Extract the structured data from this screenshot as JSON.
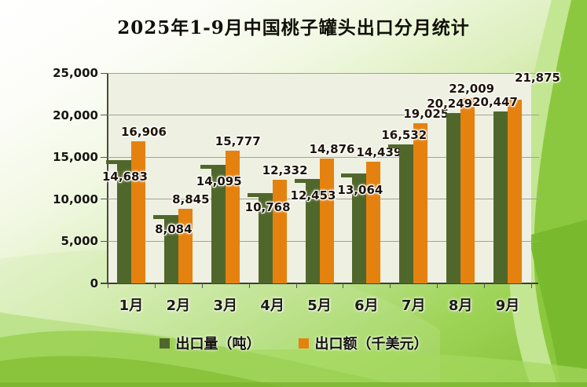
{
  "chart_data": {
    "type": "bar",
    "title": "2025年1-9月中国桃子罐头出口分月统计",
    "categories": [
      "1月",
      "2月",
      "3月",
      "4月",
      "5月",
      "6月",
      "7月",
      "8月",
      "9月"
    ],
    "series": [
      {
        "name": "出口量（吨）",
        "color": "#50672b",
        "values": [
          14683,
          8084,
          14095,
          10768,
          12453,
          13064,
          16532,
          20249,
          20447
        ]
      },
      {
        "name": "出口额（千美元）",
        "color": "#e5810f",
        "values": [
          16906,
          8845,
          15777,
          12332,
          14876,
          14439,
          19025,
          22009,
          21875
        ]
      }
    ],
    "ylim": [
      0,
      25000
    ],
    "ytick_step": 5000,
    "ytick_labels": [
      "0",
      "5,000",
      "10,000",
      "15,000",
      "20,000",
      "25,000"
    ],
    "grid": true,
    "legend_position": "bottom",
    "plot_background": "#eef0e2",
    "label_offsets": {
      "volume": [
        [
          -8,
          21
        ],
        [
          -6,
          18
        ],
        [
          -8,
          21
        ],
        [
          -6,
          18
        ],
        [
          -8,
          21
        ],
        [
          -8,
          21
        ],
        [
          -12,
          -12
        ],
        [
          -14,
          -12
        ],
        [
          -16,
          -12
        ]
      ],
      "value": [
        [
          16,
          -12
        ],
        [
          16,
          -12
        ],
        [
          16,
          -12
        ],
        [
          16,
          -12
        ],
        [
          16,
          -12
        ],
        [
          16,
          -12
        ],
        [
          16,
          -12
        ],
        [
          14,
          -12
        ],
        [
          38,
          -28
        ]
      ]
    }
  },
  "colors": {
    "volume_bar": "#50672b",
    "value_bar": "#e5810f",
    "plot_background": "#eef0e2",
    "gridline": "#a2a296",
    "background_green": "#8bc63f",
    "label_text": "#1d1407"
  }
}
